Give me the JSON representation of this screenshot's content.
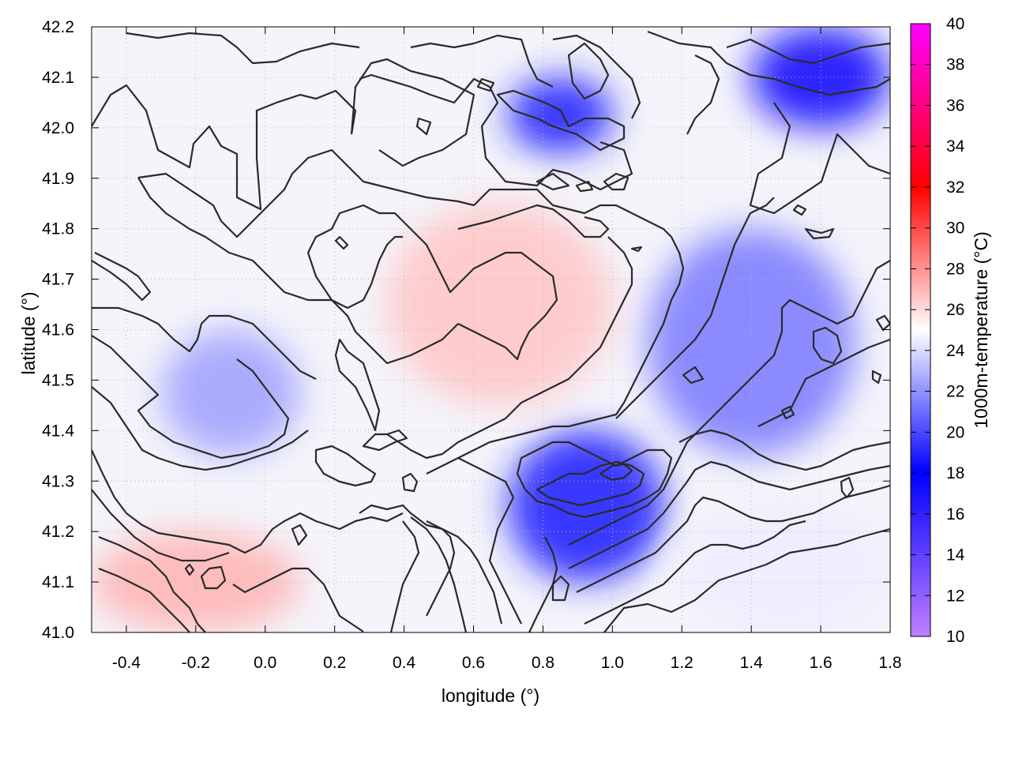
{
  "chart_data": {
    "type": "heatmap",
    "title": "",
    "xlabel": "longitude (°)",
    "ylabel": "latitude (°)",
    "colorbar_label": "1000m-temperature (°C)",
    "xlim": [
      -0.5,
      1.8
    ],
    "ylim": [
      41.0,
      42.2
    ],
    "x_ticks": [
      "-0.4",
      "-0.2",
      "0.0",
      "0.2",
      "0.4",
      "0.6",
      "0.8",
      "1.0",
      "1.2",
      "1.4",
      "1.6",
      "1.8"
    ],
    "y_ticks": [
      "41.0",
      "41.1",
      "41.2",
      "41.3",
      "41.4",
      "41.5",
      "41.6",
      "41.7",
      "41.8",
      "41.9",
      "42.0",
      "42.1",
      "42.2"
    ],
    "colorbar_ticks": [
      "10",
      "12",
      "14",
      "16",
      "18",
      "20",
      "22",
      "24",
      "26",
      "28",
      "30",
      "32",
      "34",
      "36",
      "38",
      "40"
    ],
    "colorbar_range": [
      10,
      40
    ],
    "colormap": [
      {
        "value": 10,
        "color": "#c080ff"
      },
      {
        "value": 14,
        "color": "#6040ff"
      },
      {
        "value": 18,
        "color": "#0000ff"
      },
      {
        "value": 25,
        "color": "#ffffff"
      },
      {
        "value": 32,
        "color": "#ff0000"
      },
      {
        "value": 40,
        "color": "#ff00ff"
      }
    ],
    "grid": true,
    "contours": true,
    "contour_color": "#2a2a2a",
    "field_regions": [
      {
        "name": "northeast cold core",
        "lon": [
          1.4,
          1.8
        ],
        "lat": [
          42.0,
          42.2
        ],
        "temperature": 17
      },
      {
        "name": "north-central cold pockets",
        "lon": [
          0.7,
          1.0
        ],
        "lat": [
          41.95,
          42.1
        ],
        "temperature": 19
      },
      {
        "name": "central warm tongue",
        "lon": [
          0.35,
          1.0
        ],
        "lat": [
          41.45,
          41.85
        ],
        "temperature": 26.5
      },
      {
        "name": "eastern cool band",
        "lon": [
          1.1,
          1.7
        ],
        "lat": [
          41.35,
          41.8
        ],
        "temperature": 21.5
      },
      {
        "name": "southeast cold basin",
        "lon": [
          0.7,
          1.15
        ],
        "lat": [
          41.1,
          41.4
        ],
        "temperature": 19
      },
      {
        "name": "western cool lobe",
        "lon": [
          -0.3,
          0.1
        ],
        "lat": [
          41.35,
          41.6
        ],
        "temperature": 22.5
      },
      {
        "name": "southwest warm coast",
        "lon": [
          -0.5,
          0.1
        ],
        "lat": [
          41.0,
          41.2
        ],
        "temperature": 27
      },
      {
        "name": "southeast mild",
        "lon": [
          1.2,
          1.8
        ],
        "lat": [
          41.0,
          41.25
        ],
        "temperature": 24.5
      }
    ]
  }
}
